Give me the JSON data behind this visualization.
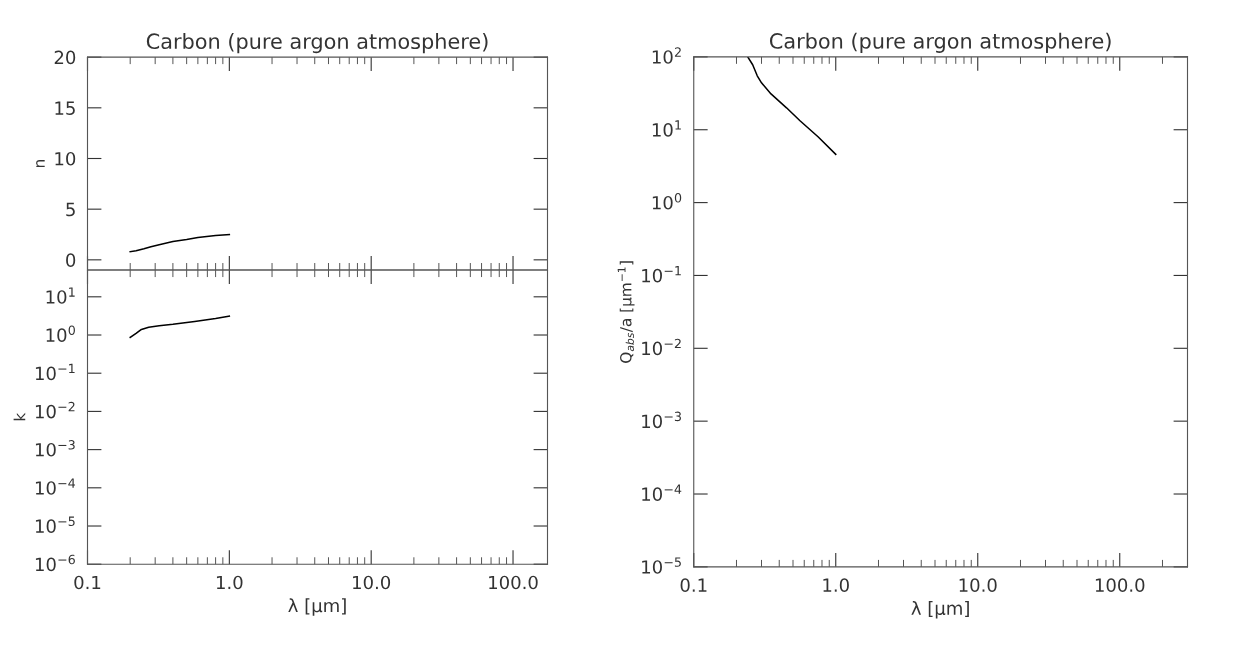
{
  "chart_data": [
    {
      "type": "line",
      "title": "Carbon (pure argon atmosphere)",
      "ylabel": "n",
      "log": "x",
      "tick_labels": "y",
      "xlim": [
        0.1,
        175
      ],
      "xticks": [
        {
          "value": 0.1,
          "label": null
        },
        {
          "value": 1,
          "label": null
        },
        {
          "value": 10,
          "label": null
        },
        {
          "value": 100,
          "label": null
        }
      ],
      "ylim": [
        -1,
        20
      ],
      "yticks": [
        0,
        5,
        10,
        15,
        20
      ],
      "grid": false,
      "legend": false,
      "series": [
        {
          "color": "#000000",
          "x": [
            0.2,
            0.22,
            0.25,
            0.28,
            0.32,
            0.4,
            0.5,
            0.6,
            0.8,
            1.0
          ],
          "values": [
            0.8,
            0.9,
            1.1,
            1.3,
            1.5,
            1.8,
            2.0,
            2.2,
            2.4,
            2.5
          ]
        }
      ]
    },
    {
      "type": "line",
      "xlabel": "λ [μm]",
      "ylabel": "k",
      "log": "xy",
      "xlim": [
        0.1,
        175
      ],
      "xticks": [
        {
          "value": 0.1,
          "label": "0.1"
        },
        {
          "value": 1,
          "label": "1.0"
        },
        {
          "value": 10,
          "label": "10.0"
        },
        {
          "value": 100,
          "label": "100.0"
        }
      ],
      "ylim": [
        1e-06,
        50
      ],
      "yticks": [
        {
          "value": 1e-06,
          "label": "10$^{−6}$"
        },
        {
          "value": 1e-05,
          "label": "10$^{−5}$"
        },
        {
          "value": 0.0001,
          "label": "10$^{−4}$"
        },
        {
          "value": 0.001,
          "label": "10$^{−3}$"
        },
        {
          "value": 0.01,
          "label": "10$^{−2}$"
        },
        {
          "value": 0.1,
          "label": "10$^{−1}$"
        },
        {
          "value": 1,
          "label": "10$^{0}$"
        },
        {
          "value": 10,
          "label": "10$^{1}$"
        }
      ],
      "grid": false,
      "legend": false,
      "series": [
        {
          "color": "#000000",
          "x": [
            0.2,
            0.22,
            0.24,
            0.27,
            0.32,
            0.4,
            0.57,
            0.8,
            1.0
          ],
          "values": [
            0.87,
            1.1,
            1.4,
            1.6,
            1.75,
            1.9,
            2.27,
            2.7,
            3.1
          ]
        }
      ]
    },
    {
      "type": "line",
      "title": "Carbon (pure argon atmosphere)",
      "xlabel": "λ [μm]",
      "ylabel": "Q$_{abs}$/a [μm$^{−1}$]",
      "log": "xy",
      "xlim": [
        0.1,
        300
      ],
      "xticks": [
        {
          "value": 0.1,
          "label": "0.1"
        },
        {
          "value": 1,
          "label": "1.0"
        },
        {
          "value": 10,
          "label": "10.0"
        },
        {
          "value": 100,
          "label": "100.0"
        }
      ],
      "ylim": [
        1e-05,
        100
      ],
      "yticks": [
        {
          "value": 1e-05,
          "label": "10$^{−5}$"
        },
        {
          "value": 0.0001,
          "label": "10$^{−4}$"
        },
        {
          "value": 0.001,
          "label": "10$^{−3}$"
        },
        {
          "value": 0.01,
          "label": "10$^{−2}$"
        },
        {
          "value": 0.1,
          "label": "10$^{−1}$"
        },
        {
          "value": 1,
          "label": "10$^{0}$"
        },
        {
          "value": 10,
          "label": "10$^{1}$"
        },
        {
          "value": 100,
          "label": "10$^{2}$"
        }
      ],
      "grid": false,
      "legend": false,
      "series": [
        {
          "color": "#000000",
          "x": [
            0.24,
            0.26,
            0.28,
            0.3,
            0.35,
            0.45,
            0.56,
            0.75,
            1.0
          ],
          "values": [
            100,
            78,
            55,
            44,
            31,
            20,
            13.3,
            8,
            4.6
          ]
        }
      ]
    }
  ]
}
